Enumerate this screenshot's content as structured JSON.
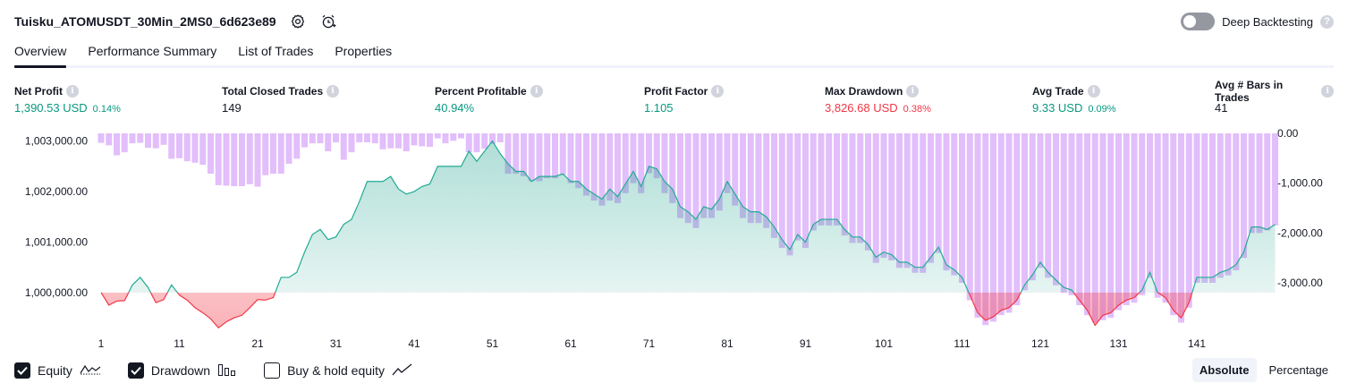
{
  "header": {
    "title": "Tuisku_ATOMUSDT_30Min_2MS0_6d623e89",
    "deep_backtesting_label": "Deep Backtesting",
    "help_glyph": "?"
  },
  "tabs": [
    {
      "label": "Overview",
      "active": true
    },
    {
      "label": "Performance Summary",
      "active": false
    },
    {
      "label": "List of Trades",
      "active": false
    },
    {
      "label": "Properties",
      "active": false
    }
  ],
  "info_glyph": "i",
  "stats": [
    {
      "label": "Net Profit",
      "value": "1,390.53 USD",
      "sub": "0.14%",
      "color": "green"
    },
    {
      "label": "Total Closed Trades",
      "value": "149",
      "sub": "",
      "color": "dark"
    },
    {
      "label": "Percent Profitable",
      "value": "40.94%",
      "sub": "",
      "color": "green"
    },
    {
      "label": "Profit Factor",
      "value": "1.105",
      "sub": "",
      "color": "green"
    },
    {
      "label": "Max Drawdown",
      "value": "3,826.68 USD",
      "sub": "0.38%",
      "color": "red"
    },
    {
      "label": "Avg Trade",
      "value": "9.33 USD",
      "sub": "0.09%",
      "color": "green"
    },
    {
      "label": "Avg # Bars in Trades",
      "value": "41",
      "sub": "",
      "color": "dark"
    }
  ],
  "colors": {
    "profit": "#089981",
    "loss": "#f23645",
    "equity_line": "#22ab94",
    "drawdown_bar": "#ce93f8",
    "text": "#131722",
    "muted": "#6a6d78"
  },
  "legend": {
    "equity": {
      "label": "Equity",
      "checked": true
    },
    "drawdown": {
      "label": "Drawdown",
      "checked": true
    },
    "buyhold": {
      "label": "Buy & hold equity",
      "checked": false
    }
  },
  "modes": {
    "absolute": "Absolute",
    "percentage": "Percentage",
    "selected": "absolute"
  },
  "chart_data": {
    "type": "line",
    "x_ticks": [
      "1",
      "11",
      "21",
      "31",
      "41",
      "51",
      "61",
      "71",
      "81",
      "91",
      "101",
      "111",
      "121",
      "131",
      "141"
    ],
    "left_axis": {
      "ticks": [
        "1,003,000.00",
        "1,002,000.00",
        "1,001,000.00",
        "1,000,000.00"
      ],
      "range": [
        999200,
        1003100
      ]
    },
    "right_axis": {
      "ticks": [
        "0.00",
        "-1,000.00",
        "-2,000.00",
        "-3,000.00"
      ],
      "range": [
        -3826.68,
        0
      ]
    },
    "series": [
      {
        "type": "line",
        "values": [
          1000000,
          999750,
          999830,
          999840,
          1000150,
          1000300,
          1000100,
          999800,
          999860,
          1000150,
          999950,
          999850,
          999700,
          999600,
          999480,
          999300,
          999420,
          999500,
          999550,
          999700,
          999860,
          999850,
          999900,
          1000300,
          1000300,
          1000400,
          1000800,
          1001150,
          1001250,
          1001050,
          1001100,
          1001350,
          1001450,
          1001800,
          1002200,
          1002200,
          1002200,
          1002300,
          1002050,
          1001950,
          1002000,
          1002100,
          1002150,
          1002500,
          1002500,
          1002500,
          1002500,
          1002800,
          1002600,
          1002800,
          1003000,
          1002750,
          1002550,
          1002400,
          1002400,
          1002200,
          1002300,
          1002300,
          1002300,
          1002350,
          1002200,
          1002200,
          1002050,
          1001950,
          1001850,
          1002050,
          1001900,
          1002150,
          1002400,
          1002100,
          1002500,
          1002450,
          1002200,
          1002050,
          1001700,
          1001600,
          1001450,
          1001700,
          1001650,
          1001850,
          1002200,
          1001950,
          1001700,
          1001600,
          1001600,
          1001500,
          1001300,
          1001050,
          1000850,
          1001150,
          1001000,
          1001350,
          1001450,
          1001450,
          1001450,
          1001250,
          1001100,
          1001100,
          1000950,
          1000700,
          1000800,
          1000750,
          1000600,
          1000600,
          1000500,
          1000500,
          1000700,
          1000900,
          1000550,
          1000450,
          1000300,
          999950,
          999600,
          999450,
          999520,
          999650,
          999700,
          999850,
          1000150,
          1000350,
          1000600,
          1000400,
          1000250,
          1000100,
          1000050,
          999850,
          999650,
          999350,
          999550,
          999600,
          999750,
          999850,
          999900,
          1000050,
          1000400,
          1000000,
          999900,
          999650,
          999500,
          999800,
          1000300,
          1000300,
          1000300,
          1000400,
          1000450,
          1000550,
          1000800,
          1001300,
          1001300,
          1001250,
          1001350
        ]
      },
      {
        "type": "bar",
        "values": [
          -190,
          -240,
          -440,
          -380,
          -200,
          -190,
          -290,
          -300,
          -230,
          -510,
          -500,
          -560,
          -590,
          -630,
          -810,
          -1040,
          -1050,
          -1060,
          -1060,
          -1020,
          -1070,
          -840,
          -810,
          -810,
          -610,
          -510,
          -280,
          -200,
          -200,
          -360,
          -180,
          -530,
          -380,
          -180,
          -180,
          -200,
          -320,
          -300,
          -300,
          -360,
          -240,
          -260,
          -270,
          -100,
          -200,
          -150,
          -100,
          -380,
          -380,
          -310,
          -210,
          -180,
          -810,
          -810,
          -860,
          -960,
          -960,
          -900,
          -900,
          -840,
          -1000,
          -1100,
          -1250,
          -1350,
          -1450,
          -1350,
          -1400,
          -1200,
          -1000,
          -1200,
          -800,
          -900,
          -1200,
          -1400,
          -1700,
          -1800,
          -1900,
          -1700,
          -1700,
          -1550,
          -1200,
          -1450,
          -1700,
          -1800,
          -1800,
          -1900,
          -2100,
          -2300,
          -2450,
          -2150,
          -2300,
          -1950,
          -1850,
          -1850,
          -1850,
          -2050,
          -2200,
          -2200,
          -2350,
          -2600,
          -2500,
          -2550,
          -2700,
          -2700,
          -2800,
          -2800,
          -2600,
          -2400,
          -2750,
          -2850,
          -3000,
          -3350,
          -3700,
          -3850,
          -3780,
          -3650,
          -3600,
          -3450,
          -3150,
          -2950,
          -2700,
          -2900,
          -3050,
          -3200,
          -3250,
          -3450,
          -3650,
          -3800,
          -3750,
          -3700,
          -3550,
          -3450,
          -3400,
          -3250,
          -2900,
          -3300,
          -3400,
          -3650,
          -3800,
          -3500,
          -3000,
          -3000,
          -3000,
          -2900,
          -2850,
          -2750,
          -2500,
          -2000,
          -2000,
          -1950,
          -1850
        ]
      }
    ]
  }
}
